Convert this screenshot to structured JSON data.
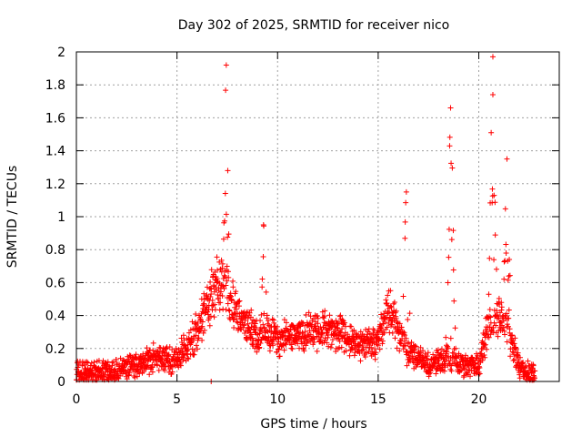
{
  "chart_data": {
    "type": "scatter",
    "title": "Day 302 of 2025, SRMTID for receiver nico",
    "xlabel": "GPS time / hours",
    "ylabel": "SRMTID / TECUs",
    "xlim": [
      0,
      24
    ],
    "ylim": [
      0,
      2
    ],
    "xticks": [
      0,
      5,
      10,
      15,
      20
    ],
    "xtick_labels": [
      "0",
      "5",
      "10",
      "15",
      "20"
    ],
    "yticks": [
      0,
      0.2,
      0.4,
      0.6,
      0.8,
      1,
      1.2,
      1.4,
      1.6,
      1.8,
      2
    ],
    "ytick_labels": [
      "0",
      "0.2",
      "0.4",
      "0.6",
      "0.8",
      "1",
      "1.2",
      "1.4",
      "1.6",
      "1.8",
      "2"
    ],
    "grid": true,
    "marker": "+",
    "marker_color": "#ff0000",
    "baseline_profile": {
      "description": "approximate envelope of the dense point cloud (hour, typical TECU)",
      "x": [
        0,
        1,
        2,
        3,
        4,
        4.8,
        5.5,
        6,
        6.5,
        7,
        7.5,
        8,
        8.5,
        9,
        9.5,
        10,
        11,
        12,
        13,
        14,
        15,
        15.5,
        16,
        16.5,
        17,
        17.5,
        18,
        18.5,
        19,
        19.5,
        20,
        20.5,
        21,
        21.5,
        22,
        22.6
      ],
      "y": [
        0.06,
        0.06,
        0.07,
        0.1,
        0.15,
        0.12,
        0.2,
        0.3,
        0.45,
        0.6,
        0.55,
        0.42,
        0.32,
        0.28,
        0.3,
        0.25,
        0.28,
        0.32,
        0.3,
        0.22,
        0.25,
        0.45,
        0.3,
        0.18,
        0.15,
        0.1,
        0.12,
        0.15,
        0.1,
        0.08,
        0.1,
        0.35,
        0.4,
        0.3,
        0.08,
        0.05
      ]
    },
    "peaks": [
      {
        "x": 7.45,
        "y": 1.92
      },
      {
        "x": 9.3,
        "y": 0.95
      },
      {
        "x": 16.4,
        "y": 1.15
      },
      {
        "x": 18.6,
        "y": 1.66
      },
      {
        "x": 20.7,
        "y": 1.97
      },
      {
        "x": 21.4,
        "y": 1.35
      }
    ],
    "outliers": [
      {
        "x": 6.7,
        "y": 0.0
      }
    ]
  }
}
